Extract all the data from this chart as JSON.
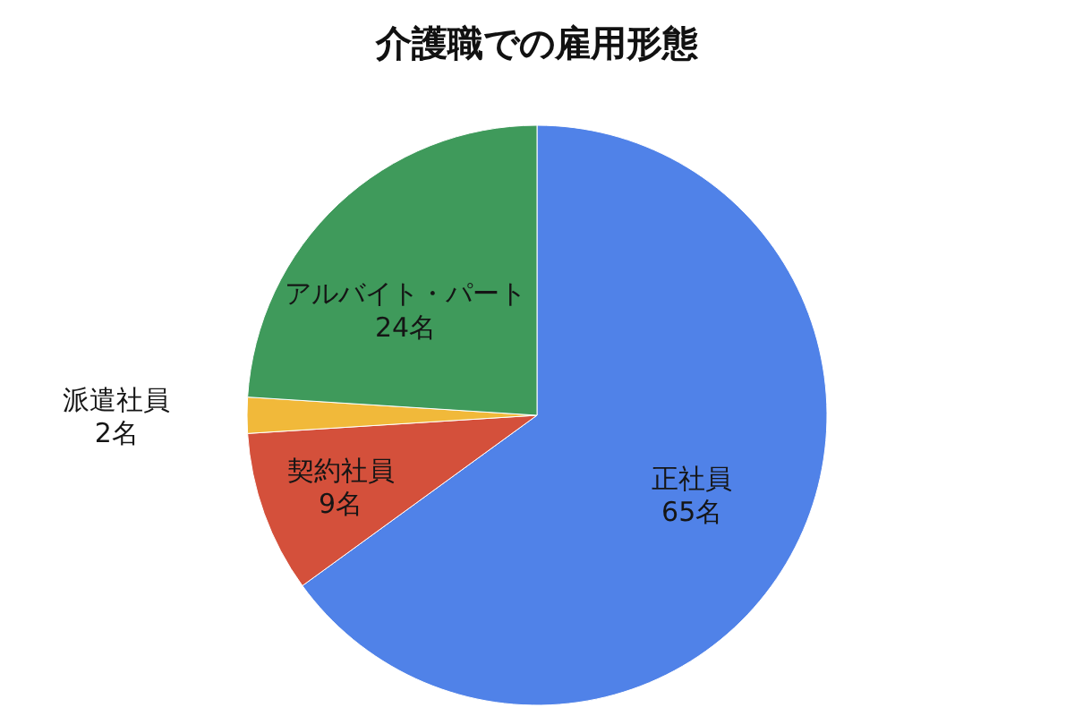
{
  "chart_data": {
    "type": "pie",
    "title": "介護職での雇用形態",
    "categories": [
      "正社員",
      "契約社員",
      "派遣社員",
      "アルバイト・パート"
    ],
    "values": [
      65,
      9,
      2,
      24
    ],
    "value_labels": [
      "65名",
      "9名",
      "2名",
      "24名"
    ],
    "colors": [
      "#5082e8",
      "#d4503b",
      "#f1b93a",
      "#3f9a5b"
    ]
  }
}
